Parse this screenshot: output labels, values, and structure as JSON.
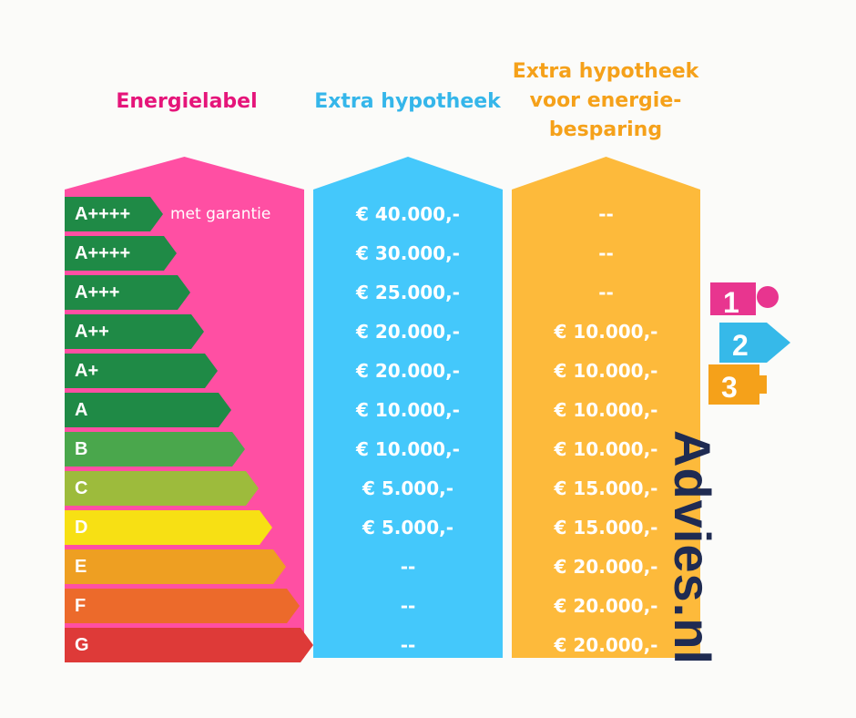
{
  "headers": {
    "energy_label": "Energielabel",
    "extra_mortgage": "Extra hypotheek",
    "extra_mortgage_saving_lines": [
      "Extra hypotheek",
      "voor energie-",
      "besparing"
    ]
  },
  "colors": {
    "energy_column": "#ff4fa3",
    "extra_column": "#44c8fb",
    "saving_column": "#fdba3b",
    "header_energy": "#e5157a",
    "header_extra": "#35b6ea",
    "header_saving": "#f5a11a",
    "brand_text": "#1f2b52"
  },
  "rows": [
    {
      "label": "A++++",
      "note": "met garantie",
      "extra": "€ 40.000,-",
      "saving": "--",
      "color": "#1f8a46"
    },
    {
      "label": "A++++",
      "note": "",
      "extra": "€ 30.000,-",
      "saving": "--",
      "color": "#1f8a46"
    },
    {
      "label": "A+++",
      "note": "",
      "extra": "€ 25.000,-",
      "saving": "--",
      "color": "#1f8a46"
    },
    {
      "label": "A++",
      "note": "",
      "extra": "€ 20.000,-",
      "saving": "€ 10.000,-",
      "color": "#1f8a46"
    },
    {
      "label": "A+",
      "note": "",
      "extra": "€ 20.000,-",
      "saving": "€ 10.000,-",
      "color": "#1f8a46"
    },
    {
      "label": "A",
      "note": "",
      "extra": "€ 10.000,-",
      "saving": "€ 10.000,-",
      "color": "#1f8a46"
    },
    {
      "label": "B",
      "note": "",
      "extra": "€ 10.000,-",
      "saving": "€ 10.000,-",
      "color": "#4aa74c"
    },
    {
      "label": "C",
      "note": "",
      "extra": "€ 5.000,-",
      "saving": "€ 15.000,-",
      "color": "#9dbb3c"
    },
    {
      "label": "D",
      "note": "",
      "extra": "€ 5.000,-",
      "saving": "€ 15.000,-",
      "color": "#f7e014"
    },
    {
      "label": "E",
      "note": "",
      "extra": "--",
      "saving": "€ 20.000,-",
      "color": "#ee9f22"
    },
    {
      "label": "F",
      "note": "",
      "extra": "--",
      "saving": "€ 20.000,-",
      "color": "#ec6a2b"
    },
    {
      "label": "G",
      "note": "",
      "extra": "--",
      "saving": "€ 20.000,-",
      "color": "#de3a38"
    }
  ],
  "brand": {
    "digits": [
      "1",
      "2",
      "3"
    ],
    "name": "Advies.nl",
    "icon_colors": [
      "#e8358f",
      "#36b9e9",
      "#f5a11a"
    ]
  }
}
